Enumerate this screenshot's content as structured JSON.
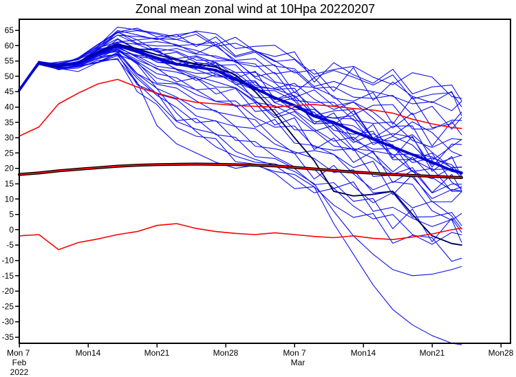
{
  "title": "Zonal mean zonal wind at 10Hpa 20220207",
  "chart_data": {
    "type": "line",
    "title": "Zonal mean zonal wind at 10Hpa 20220207",
    "legend": "none",
    "grid": false,
    "y_axis": {
      "label": "",
      "tick_values": [
        65,
        60,
        55,
        50,
        45,
        40,
        35,
        30,
        25,
        20,
        15,
        10,
        5,
        0,
        -5,
        -10,
        -15,
        -20,
        -25,
        -30,
        -35
      ],
      "range": [
        -37,
        68.5
      ]
    },
    "x_axis": {
      "label": "",
      "tick_days": [
        0,
        7,
        14,
        21,
        28,
        35,
        42,
        49
      ],
      "tick_labels": [
        "Mon 7",
        "Mon14",
        "Mon21",
        "Mon28",
        "Mon 7",
        "Mon14",
        "Mon21",
        "Mon28"
      ],
      "sub_labels": [
        {
          "day": 0,
          "lines": [
            "Feb",
            "2022"
          ]
        },
        {
          "day": 28,
          "lines": [
            "Mar"
          ]
        }
      ],
      "range_days": [
        0,
        49.9
      ],
      "start_date": "Mon 7 Feb 2022"
    },
    "days_grid": [
      0,
      2,
      4,
      6,
      8,
      10,
      12,
      14,
      16,
      18,
      20,
      22,
      24,
      26,
      28,
      30,
      32,
      34,
      36,
      38,
      40,
      42,
      44,
      45
    ],
    "series": [
      {
        "name": "ensemble-mean",
        "color": "#0000c8",
        "width": 3.8,
        "values": [
          45.5,
          54.5,
          53.5,
          54.2,
          57.5,
          60,
          58,
          56,
          54,
          53,
          52,
          49,
          46,
          43,
          40.5,
          37,
          35,
          32,
          29.5,
          27,
          24.5,
          22,
          19.3,
          18.5
        ]
      },
      {
        "name": "operational-forecast",
        "color": "#000058",
        "width": 1.9,
        "values": [
          45.5,
          54.2,
          53,
          54.6,
          58,
          60.5,
          59,
          57,
          55.5,
          54,
          53,
          50.5,
          45,
          38,
          30,
          22.5,
          12.5,
          11,
          11.5,
          12.5,
          5,
          -2,
          -4.5,
          -5
        ]
      },
      {
        "name": "climatology-upper",
        "color": "#ff0000",
        "width": 1.6,
        "values": [
          30.5,
          33.5,
          41,
          44.5,
          47.5,
          49,
          46.5,
          44.5,
          42.8,
          41.5,
          41,
          40.5,
          40.2,
          40,
          40.5,
          40.8,
          40.2,
          39.5,
          39,
          38,
          36,
          34.5,
          33.3,
          33
        ]
      },
      {
        "name": "climatology-lower",
        "color": "#ff0000",
        "width": 1.6,
        "values": [
          -2,
          -1.6,
          -6.5,
          -4.2,
          -3,
          -1.6,
          -0.6,
          1.4,
          2,
          0.4,
          -0.6,
          -1.2,
          -1.6,
          -1,
          -1.6,
          -2.2,
          -2.6,
          -2,
          -2.8,
          -3.2,
          -2.4,
          -1.4,
          0,
          0.5
        ]
      },
      {
        "name": "climatology-mean",
        "color": "#ff1010",
        "width": 1.7,
        "outline_color": "#000000",
        "outline_width": 4.2,
        "values": [
          18,
          18.5,
          19.2,
          19.7,
          20.2,
          20.7,
          21,
          21.2,
          21.3,
          21.4,
          21.3,
          21.2,
          21,
          20.8,
          20.3,
          19.8,
          19.3,
          18.8,
          18.4,
          18,
          17.7,
          17.4,
          17.1,
          17
        ]
      }
    ],
    "outlier_members": [
      {
        "name": "ensemble-member-low-1",
        "values": [
          45.3,
          54,
          52.8,
          53.5,
          56,
          57,
          48,
          34,
          28,
          25,
          22,
          20,
          21,
          19,
          18,
          14,
          2,
          -8,
          -18,
          -26,
          -31,
          -34.5,
          -37,
          -37.5
        ]
      },
      {
        "name": "ensemble-member-low-2",
        "values": [
          45.6,
          54.6,
          53.2,
          54,
          57,
          58.5,
          54,
          46,
          38,
          32,
          27,
          24,
          22,
          21.5,
          19,
          15,
          6,
          -2,
          -8,
          -13,
          -15,
          -14.5,
          -13,
          -12
        ]
      }
    ],
    "ensemble": {
      "color": "#0d0dee",
      "width": 1.1,
      "count": 34,
      "member_biases": [
        -1,
        -0.93,
        -0.86,
        -0.8,
        -0.73,
        -0.66,
        -0.58,
        -0.5,
        -0.44,
        -0.38,
        -0.32,
        -0.27,
        -0.22,
        -0.17,
        -0.12,
        -0.07,
        -0.02,
        0.03,
        0.08,
        0.13,
        0.19,
        0.25,
        0.31,
        0.37,
        0.44,
        0.5,
        0.57,
        0.64,
        0.71,
        0.78,
        0.85,
        0.91,
        0.96,
        1
      ],
      "upper_offset": [
        0.4,
        0.6,
        0.8,
        1.5,
        3,
        5.5,
        6.5,
        9,
        9.5,
        11,
        11,
        11.5,
        14,
        15,
        15,
        16,
        17,
        19.5,
        21.5,
        23,
        24,
        25.5,
        27,
        27.7
      ],
      "lower_offset": [
        0.4,
        0.8,
        1.2,
        2,
        3,
        4.5,
        12,
        16,
        20,
        22,
        24,
        25,
        25,
        26,
        25,
        26,
        26,
        26,
        27,
        28,
        27,
        26,
        26,
        26
      ]
    },
    "colors": {
      "member_blue": "#0d0dee",
      "mean_blue": "#0000c8",
      "operational_navy": "#000058",
      "climatology_red": "#ff0000",
      "climatology_mean_outline": "#000000",
      "axis_black": "#000000"
    }
  }
}
